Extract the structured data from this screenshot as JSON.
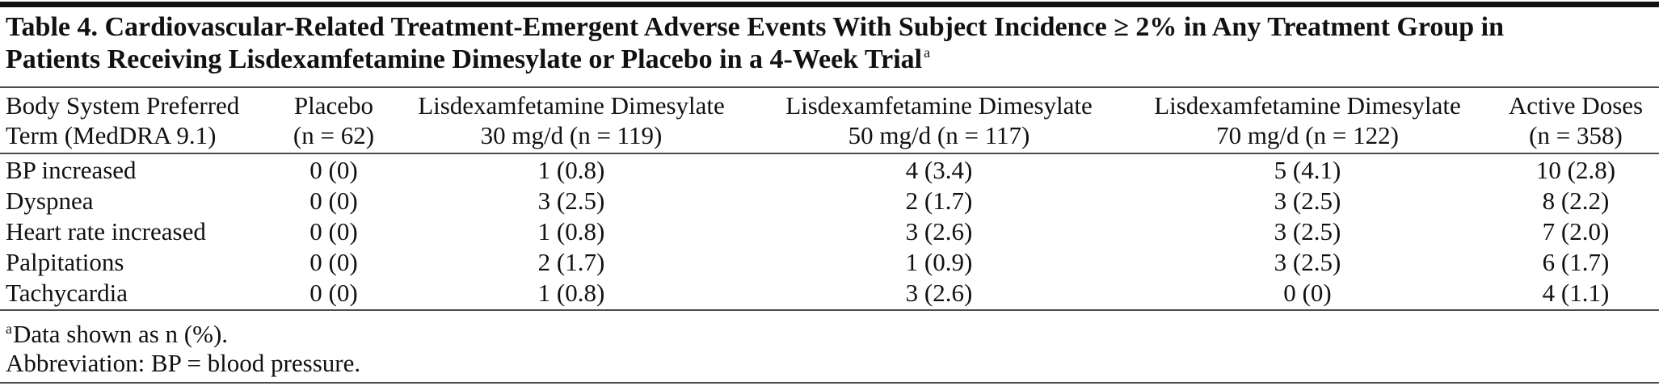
{
  "table": {
    "title_lines": [
      "Table 4. Cardiovascular-Related Treatment-Emergent Adverse Events With Subject Incidence ≥ 2% in Any Treatment Group in",
      "Patients Receiving Lisdexamfetamine Dimesylate or Placebo in a 4-Week Trial"
    ],
    "title_marker": "a",
    "columns": [
      [
        "Body System Preferred",
        "Term (MedDRA 9.1)"
      ],
      [
        "Placebo",
        "(n = 62)"
      ],
      [
        "Lisdexamfetamine Dimesylate",
        "30 mg/d (n = 119)"
      ],
      [
        "Lisdexamfetamine Dimesylate",
        "50 mg/d (n = 117)"
      ],
      [
        "Lisdexamfetamine Dimesylate",
        "70 mg/d (n = 122)"
      ],
      [
        "Active Doses",
        "(n = 358)"
      ]
    ],
    "rows": [
      [
        "BP increased",
        "0 (0)",
        "1 (0.8)",
        "4 (3.4)",
        "5 (4.1)",
        "10 (2.8)"
      ],
      [
        "Dyspnea",
        "0 (0)",
        "3 (2.5)",
        "2 (1.7)",
        "3 (2.5)",
        "8 (2.2)"
      ],
      [
        "Heart rate increased",
        "0 (0)",
        "1 (0.8)",
        "3 (2.6)",
        "3 (2.5)",
        "7 (2.0)"
      ],
      [
        "Palpitations",
        "0 (0)",
        "2 (1.7)",
        "1 (0.9)",
        "3 (2.5)",
        "6 (1.7)"
      ],
      [
        "Tachycardia",
        "0 (0)",
        "1 (0.8)",
        "3 (2.6)",
        "0 (0)",
        "4 (1.1)"
      ]
    ],
    "footnotes": [
      {
        "marker": "a",
        "text": "Data shown as n (%)."
      },
      {
        "text": "Abbreviation: BP = blood pressure."
      }
    ]
  }
}
